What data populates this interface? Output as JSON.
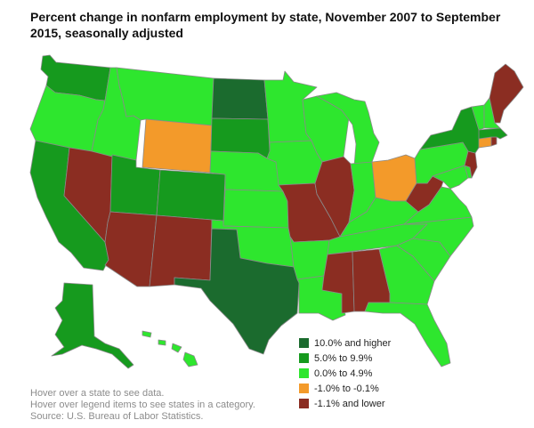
{
  "title": "Percent change in nonfarm employment by state, November 2007 to September 2015, seasonally adjusted",
  "legend": [
    {
      "label": "10.0% and higher",
      "color": "#1b6b2e"
    },
    {
      "label": "5.0% to 9.9%",
      "color": "#169a1e"
    },
    {
      "label": "0.0% to 4.9%",
      "color": "#2ee62e"
    },
    {
      "label": "-1.0% to -0.1%",
      "color": "#f39a2a"
    },
    {
      "label": "-1.1% and lower",
      "color": "#8b2d22"
    }
  ],
  "notes": [
    "Hover over a state to see data.",
    "Hover over legend items to see states in a category.",
    "Source: U.S. Bureau of Labor Statistics."
  ],
  "states": [
    {
      "code": "WA",
      "category": 1
    },
    {
      "code": "OR",
      "category": 2
    },
    {
      "code": "CA",
      "category": 1
    },
    {
      "code": "NV",
      "category": 4
    },
    {
      "code": "ID",
      "category": 2
    },
    {
      "code": "MT",
      "category": 2
    },
    {
      "code": "WY",
      "category": 3
    },
    {
      "code": "UT",
      "category": 1
    },
    {
      "code": "AZ",
      "category": 4
    },
    {
      "code": "CO",
      "category": 1
    },
    {
      "code": "NM",
      "category": 4
    },
    {
      "code": "ND",
      "category": 0
    },
    {
      "code": "SD",
      "category": 1
    },
    {
      "code": "NE",
      "category": 2
    },
    {
      "code": "KS",
      "category": 2
    },
    {
      "code": "OK",
      "category": 2
    },
    {
      "code": "TX",
      "category": 0
    },
    {
      "code": "MN",
      "category": 2
    },
    {
      "code": "IA",
      "category": 2
    },
    {
      "code": "MO",
      "category": 4
    },
    {
      "code": "AR",
      "category": 2
    },
    {
      "code": "LA",
      "category": 2
    },
    {
      "code": "WI",
      "category": 2
    },
    {
      "code": "IL",
      "category": 4
    },
    {
      "code": "MI",
      "category": 2
    },
    {
      "code": "IN",
      "category": 2
    },
    {
      "code": "OH",
      "category": 3
    },
    {
      "code": "KY",
      "category": 2
    },
    {
      "code": "TN",
      "category": 2
    },
    {
      "code": "MS",
      "category": 4
    },
    {
      "code": "AL",
      "category": 4
    },
    {
      "code": "GA",
      "category": 2
    },
    {
      "code": "FL",
      "category": 2
    },
    {
      "code": "SC",
      "category": 2
    },
    {
      "code": "NC",
      "category": 2
    },
    {
      "code": "VA",
      "category": 2
    },
    {
      "code": "WV",
      "category": 4
    },
    {
      "code": "PA",
      "category": 2
    },
    {
      "code": "NY",
      "category": 1
    },
    {
      "code": "NJ",
      "category": 4
    },
    {
      "code": "DE",
      "category": 2
    },
    {
      "code": "MD",
      "category": 2
    },
    {
      "code": "CT",
      "category": 3
    },
    {
      "code": "RI",
      "category": 4
    },
    {
      "code": "MA",
      "category": 1
    },
    {
      "code": "VT",
      "category": 2
    },
    {
      "code": "NH",
      "category": 2
    },
    {
      "code": "ME",
      "category": 4
    },
    {
      "code": "AK",
      "category": 1
    },
    {
      "code": "HI",
      "category": 2
    }
  ]
}
